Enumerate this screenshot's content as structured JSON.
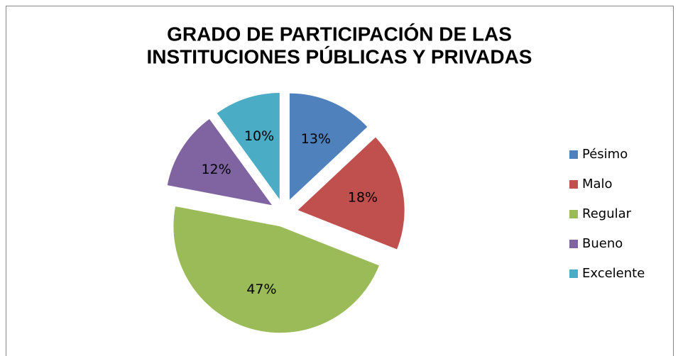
{
  "chart_data": {
    "type": "pie",
    "title": [
      "GRADO DE PARTICIPACIÓN DE LAS",
      "INSTITUCIONES PÚBLICAS Y PRIVADAS"
    ],
    "categories": [
      "Pésimo",
      "Malo",
      "Regular",
      "Bueno",
      "Excelente"
    ],
    "values": [
      13,
      18,
      47,
      12,
      10
    ],
    "value_labels": [
      "13%",
      "18%",
      "47%",
      "12%",
      "10%"
    ],
    "colors": [
      "#4f81bd",
      "#c0504d",
      "#9bbb59",
      "#8064a2",
      "#4bacc6"
    ],
    "legend": "right"
  }
}
